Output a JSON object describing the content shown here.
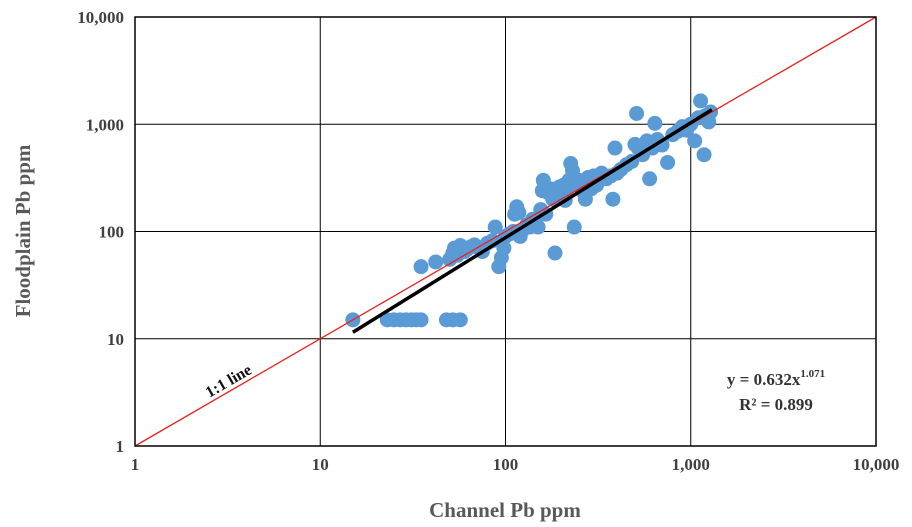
{
  "chart_data": {
    "type": "scatter",
    "title": "",
    "xlabel": "Channel Pb ppm",
    "ylabel": "Floodplain Pb ppm",
    "xscale": "log",
    "yscale": "log",
    "xlim": [
      1,
      10000
    ],
    "ylim": [
      1,
      10000
    ],
    "x_ticks": [
      "1",
      "10",
      "100",
      "1,000",
      "10,000"
    ],
    "y_ticks": [
      "1",
      "10",
      "100",
      "1,000",
      "10,000"
    ],
    "grid": true,
    "colors": {
      "points": "#5b9bd5",
      "fit_line": "#000000",
      "one_to_one": "#e8211d",
      "grid": "#000000"
    },
    "series": [
      {
        "values": [
          {
            "x": 15,
            "y": 15
          },
          {
            "x": 23,
            "y": 15
          },
          {
            "x": 25,
            "y": 15
          },
          {
            "x": 27,
            "y": 15
          },
          {
            "x": 29,
            "y": 15
          },
          {
            "x": 31,
            "y": 15
          },
          {
            "x": 33,
            "y": 15
          },
          {
            "x": 35,
            "y": 15
          },
          {
            "x": 48,
            "y": 15
          },
          {
            "x": 52,
            "y": 15
          },
          {
            "x": 57,
            "y": 15
          },
          {
            "x": 35,
            "y": 47
          },
          {
            "x": 42,
            "y": 52
          },
          {
            "x": 50,
            "y": 55
          },
          {
            "x": 52,
            "y": 63
          },
          {
            "x": 53,
            "y": 70
          },
          {
            "x": 55,
            "y": 60
          },
          {
            "x": 57,
            "y": 74
          },
          {
            "x": 60,
            "y": 65
          },
          {
            "x": 62,
            "y": 68
          },
          {
            "x": 65,
            "y": 72
          },
          {
            "x": 68,
            "y": 75
          },
          {
            "x": 72,
            "y": 70
          },
          {
            "x": 75,
            "y": 65
          },
          {
            "x": 80,
            "y": 78
          },
          {
            "x": 85,
            "y": 82
          },
          {
            "x": 88,
            "y": 110
          },
          {
            "x": 92,
            "y": 47
          },
          {
            "x": 95,
            "y": 57
          },
          {
            "x": 98,
            "y": 70
          },
          {
            "x": 100,
            "y": 90
          },
          {
            "x": 105,
            "y": 95
          },
          {
            "x": 110,
            "y": 100
          },
          {
            "x": 112,
            "y": 145
          },
          {
            "x": 115,
            "y": 170
          },
          {
            "x": 118,
            "y": 150
          },
          {
            "x": 120,
            "y": 90
          },
          {
            "x": 125,
            "y": 105
          },
          {
            "x": 130,
            "y": 115
          },
          {
            "x": 135,
            "y": 110
          },
          {
            "x": 140,
            "y": 130
          },
          {
            "x": 145,
            "y": 120
          },
          {
            "x": 150,
            "y": 110
          },
          {
            "x": 155,
            "y": 160
          },
          {
            "x": 158,
            "y": 240
          },
          {
            "x": 160,
            "y": 300
          },
          {
            "x": 165,
            "y": 145
          },
          {
            "x": 170,
            "y": 230
          },
          {
            "x": 175,
            "y": 250
          },
          {
            "x": 180,
            "y": 200
          },
          {
            "x": 185,
            "y": 63
          },
          {
            "x": 190,
            "y": 240
          },
          {
            "x": 195,
            "y": 260
          },
          {
            "x": 200,
            "y": 220
          },
          {
            "x": 205,
            "y": 270
          },
          {
            "x": 210,
            "y": 195
          },
          {
            "x": 215,
            "y": 250
          },
          {
            "x": 220,
            "y": 300
          },
          {
            "x": 225,
            "y": 430
          },
          {
            "x": 230,
            "y": 370
          },
          {
            "x": 235,
            "y": 110
          },
          {
            "x": 240,
            "y": 280
          },
          {
            "x": 250,
            "y": 300
          },
          {
            "x": 260,
            "y": 240
          },
          {
            "x": 270,
            "y": 200
          },
          {
            "x": 280,
            "y": 320
          },
          {
            "x": 290,
            "y": 250
          },
          {
            "x": 300,
            "y": 330
          },
          {
            "x": 310,
            "y": 270
          },
          {
            "x": 320,
            "y": 300
          },
          {
            "x": 330,
            "y": 350
          },
          {
            "x": 350,
            "y": 310
          },
          {
            "x": 370,
            "y": 330
          },
          {
            "x": 380,
            "y": 200
          },
          {
            "x": 390,
            "y": 600
          },
          {
            "x": 400,
            "y": 350
          },
          {
            "x": 420,
            "y": 380
          },
          {
            "x": 450,
            "y": 420
          },
          {
            "x": 480,
            "y": 450
          },
          {
            "x": 500,
            "y": 650
          },
          {
            "x": 510,
            "y": 1260
          },
          {
            "x": 520,
            "y": 600
          },
          {
            "x": 550,
            "y": 520
          },
          {
            "x": 580,
            "y": 700
          },
          {
            "x": 600,
            "y": 310
          },
          {
            "x": 620,
            "y": 600
          },
          {
            "x": 640,
            "y": 1020
          },
          {
            "x": 660,
            "y": 720
          },
          {
            "x": 700,
            "y": 640
          },
          {
            "x": 750,
            "y": 440
          },
          {
            "x": 800,
            "y": 800
          },
          {
            "x": 850,
            "y": 860
          },
          {
            "x": 900,
            "y": 950
          },
          {
            "x": 950,
            "y": 880
          },
          {
            "x": 1000,
            "y": 1000
          },
          {
            "x": 1050,
            "y": 700
          },
          {
            "x": 1100,
            "y": 1150
          },
          {
            "x": 1130,
            "y": 1650
          },
          {
            "x": 1180,
            "y": 520
          },
          {
            "x": 1200,
            "y": 1200
          },
          {
            "x": 1250,
            "y": 1050
          },
          {
            "x": 1280,
            "y": 1300
          }
        ]
      }
    ],
    "trendline": {
      "type": "power",
      "a": 0.632,
      "b": 1.071,
      "x_range": [
        15,
        1300
      ]
    },
    "reference_line": {
      "type": "identity",
      "label": "1:1 line"
    },
    "annotations": {
      "equation_main": "y = 0.632x",
      "equation_exp": "1.071",
      "r_squared": "R² = 0.899"
    }
  }
}
